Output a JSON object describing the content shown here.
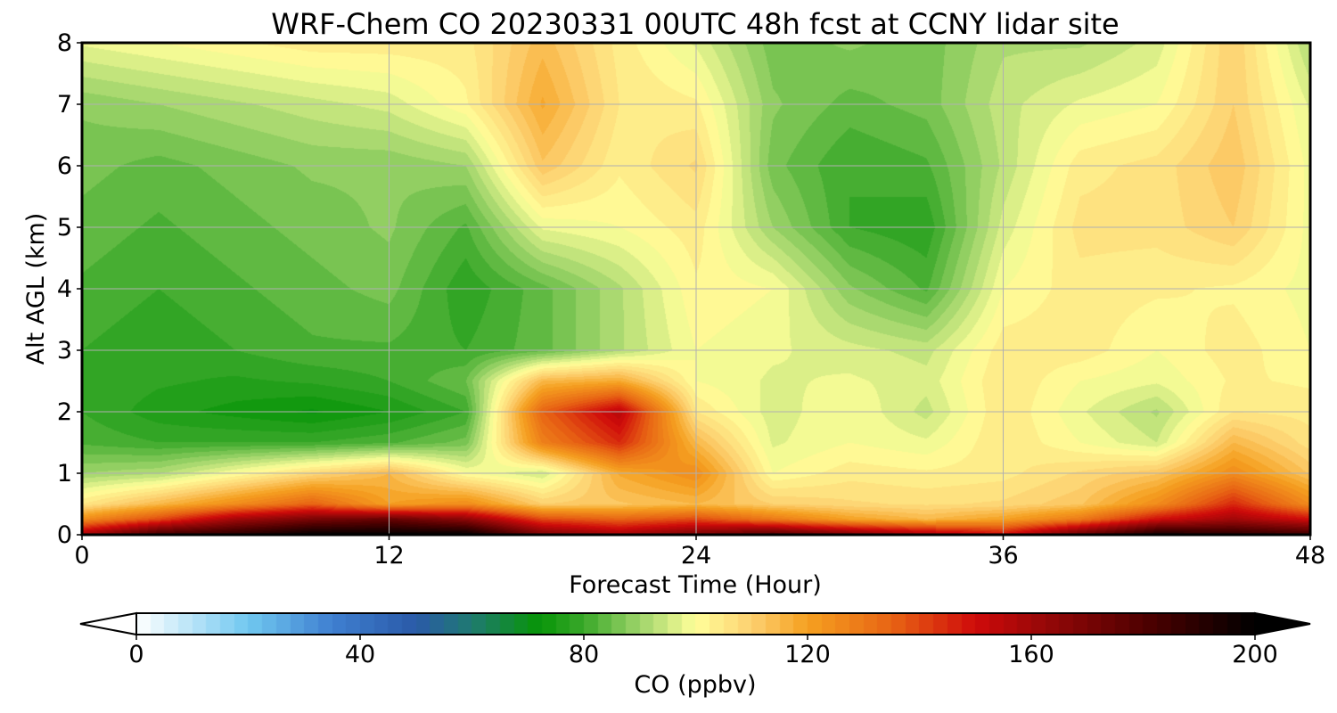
{
  "chart_data": {
    "type": "heatmap",
    "title": "WRF-Chem CO  20230331 00UTC 48h fcst at CCNY lidar site",
    "xlabel": "Forecast Time (Hour)",
    "ylabel": "Alt AGL (km)",
    "xlim": [
      0,
      48
    ],
    "ylim": [
      0,
      8
    ],
    "xticks": [
      0,
      12,
      24,
      36,
      48
    ],
    "yticks": [
      0,
      1,
      2,
      3,
      4,
      5,
      6,
      7,
      8
    ],
    "grid": true,
    "x": [
      0,
      3,
      6,
      9,
      12,
      15,
      18,
      21,
      24,
      27,
      30,
      33,
      36,
      39,
      42,
      45,
      48
    ],
    "y": [
      0,
      0.25,
      0.5,
      1,
      1.5,
      2,
      2.5,
      3,
      4,
      5,
      6,
      7,
      8
    ],
    "values": [
      [
        160,
        185,
        190,
        200,
        200,
        200,
        170,
        160,
        170,
        180,
        170,
        160,
        150,
        175,
        195,
        190,
        185
      ],
      [
        125,
        140,
        160,
        170,
        175,
        165,
        140,
        135,
        140,
        130,
        120,
        115,
        120,
        130,
        150,
        160,
        150
      ],
      [
        105,
        115,
        125,
        135,
        120,
        125,
        110,
        112,
        115,
        110,
        108,
        107,
        108,
        112,
        125,
        145,
        125
      ],
      [
        90,
        92,
        100,
        108,
        115,
        100,
        95,
        118,
        125,
        100,
        104,
        103,
        104,
        108,
        112,
        125,
        112
      ],
      [
        82,
        80,
        80,
        80,
        82,
        86,
        128,
        145,
        115,
        97,
        100,
        98,
        105,
        100,
        95,
        115,
        106
      ],
      [
        80,
        76,
        74,
        72,
        75,
        80,
        135,
        155,
        105,
        96,
        100,
        94,
        105,
        98,
        92,
        105,
        104
      ],
      [
        80,
        78,
        77,
        78,
        80,
        85,
        115,
        118,
        100,
        97,
        98,
        96,
        105,
        100,
        98,
        103,
        102
      ],
      [
        80,
        78,
        80,
        82,
        82,
        80,
        84,
        92,
        100,
        98,
        96,
        94,
        104,
        104,
        100,
        104,
        100
      ],
      [
        82,
        80,
        82,
        84,
        86,
        78,
        84,
        92,
        102,
        100,
        88,
        82,
        100,
        104,
        103,
        102,
        99
      ],
      [
        84,
        82,
        84,
        86,
        88,
        82,
        98,
        100,
        104,
        90,
        80,
        78,
        96,
        106,
        106,
        110,
        99
      ],
      [
        86,
        84,
        86,
        88,
        88,
        90,
        112,
        103,
        108,
        86,
        80,
        82,
        93,
        104,
        106,
        112,
        99
      ],
      [
        88,
        90,
        92,
        94,
        96,
        102,
        118,
        105,
        103,
        88,
        84,
        86,
        94,
        98,
        100,
        110,
        97
      ],
      [
        98,
        100,
        102,
        104,
        104,
        104,
        114,
        104,
        97,
        86,
        88,
        86,
        92,
        92,
        96,
        110,
        92
      ]
    ],
    "colorbar": {
      "label": "CO  (ppbv)",
      "min": 0,
      "max": 200,
      "ticks": [
        0,
        40,
        80,
        120,
        160,
        200
      ],
      "extend": "both",
      "colors": [
        [
          0,
          "#ffffff"
        ],
        [
          20,
          "#70c8f0"
        ],
        [
          35,
          "#3f7fd0"
        ],
        [
          50,
          "#2a5aa8"
        ],
        [
          60,
          "#1f7a70"
        ],
        [
          72,
          "#079507"
        ],
        [
          80,
          "#3aa82a"
        ],
        [
          90,
          "#9ed46a"
        ],
        [
          100,
          "#ffff9a"
        ],
        [
          110,
          "#fdd070"
        ],
        [
          120,
          "#f5a020"
        ],
        [
          135,
          "#e86414"
        ],
        [
          150,
          "#cf0a0a"
        ],
        [
          160,
          "#a00808"
        ],
        [
          180,
          "#500000"
        ],
        [
          200,
          "#000000"
        ]
      ]
    }
  }
}
